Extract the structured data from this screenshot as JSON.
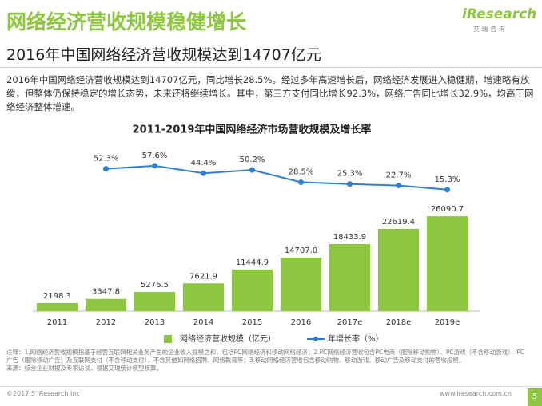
{
  "header": {
    "title": "网络经济营收规模稳健增长",
    "subtitle": "2016年中国网络经济营收规模达到14707亿元",
    "logo": "iResearch",
    "logo_sub": "艾 瑞 咨 询"
  },
  "summary": "2016年中国网络经济营收规模达到14707亿元，同比增长28.5%。经过多年高速增长后，网络经济发展进入稳健期，增速略有放缓，但整体仍保持稳定的增长态势，未来还将继续增长。其中，第三方支付同比增长92.3%，网络广告同比增长32.9%，均高于网络经济整体增速。",
  "chart_data": {
    "type": "bar",
    "title": "2011-2019年中国网络经济市场营收规模及增长率",
    "categories": [
      "2011",
      "2012",
      "2013",
      "2014",
      "2015",
      "2016",
      "2017e",
      "2018e",
      "2019e"
    ],
    "series": [
      {
        "name": "网络经济营收规模（亿元）",
        "color": "#8dc63f",
        "values": [
          2198.3,
          3347.8,
          5276.5,
          7621.9,
          11444.9,
          14707.0,
          18433.9,
          22619.4,
          26090.7
        ],
        "value_labels": [
          "2198.3",
          "3347.8",
          "5276.5",
          "7621.9",
          "11444.9",
          "14707.0",
          "18433.9",
          "22619.4",
          "26090.7"
        ]
      },
      {
        "name": "年增长率（%）",
        "type": "line",
        "axis": "y2",
        "color": "#2e7fd1",
        "values": [
          null,
          52.3,
          57.6,
          44.4,
          50.2,
          28.5,
          25.3,
          22.7,
          15.3
        ],
        "value_labels": [
          null,
          "52.3%",
          "57.6%",
          "44.4%",
          "50.2%",
          "28.5%",
          "25.3%",
          "22.7%",
          "15.3%"
        ]
      }
    ],
    "ylim": [
      0,
      45000
    ],
    "y2lim": [
      -200,
      90
    ]
  },
  "notes": [
    "注释：1.网络经济营收规模指基于经营互联网相关业务产生的企业收入规模之和，包括PC网络经济和移动网络经济；2.PC网络经济营收包含PC电商（服除移动购物）、PC游戏（不含移动游戏）、PC广告（服除移动广告）及互联网支付（不含移动支付），不含其他如网络招聘、网络教育等；3.移动网络经济营收包含移动购物、移动游戏、移动广告及移动支付的营收规模。",
    "来源：综合企业财报及专家访谈，根据艾瑞统计模型核算。"
  ],
  "footer": {
    "copyright": "©2017.5 iResearch Inc",
    "url": "www.iresearch.com.cn",
    "page": "5"
  }
}
